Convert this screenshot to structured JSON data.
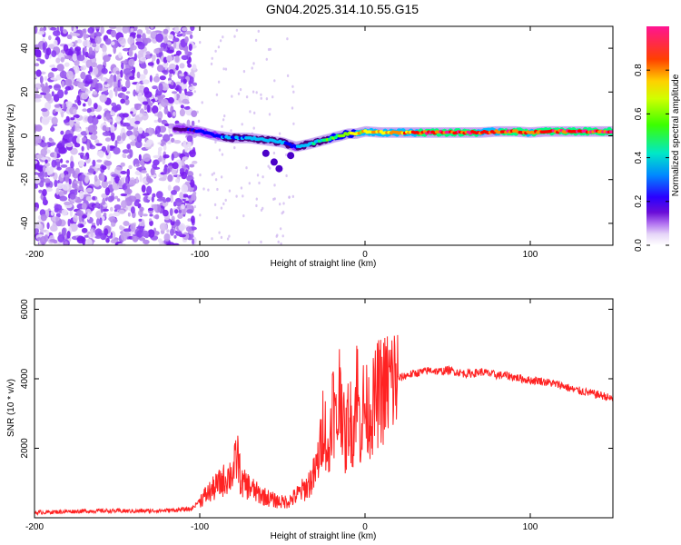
{
  "title": "GN04.2025.314.10.55.G15",
  "chart_data": [
    {
      "type": "heatmap",
      "xlabel": "Height of straight line (km)",
      "ylabel": "Frequency (Hz)",
      "xlim": [
        -200,
        150
      ],
      "ylim": [
        -50,
        50
      ],
      "xticks": [
        "-200",
        "-100",
        "0",
        "100"
      ],
      "yticks": [
        "40",
        "20",
        "0",
        "-20",
        "-40"
      ],
      "noise_region_km": [
        -200,
        -103
      ],
      "ridge": {
        "x": [
          -115,
          -110,
          -100,
          -90,
          -80,
          -70,
          -60,
          -50,
          -42,
          -35,
          -30,
          -25,
          -20,
          -15,
          -10,
          -5,
          0,
          10,
          20,
          30,
          40,
          60,
          70,
          80,
          90,
          100,
          110,
          130,
          150
        ],
        "y": [
          3,
          3,
          2,
          0,
          -1,
          -1,
          -2,
          -3,
          -5,
          -4,
          -3,
          -2,
          -1,
          0,
          1,
          1,
          2,
          1.5,
          1.5,
          1.5,
          1.5,
          1.5,
          1.5,
          2,
          2,
          1.5,
          2,
          2,
          2
        ],
        "amplitude": [
          0.25,
          0.3,
          0.35,
          0.4,
          0.45,
          0.45,
          0.5,
          0.45,
          0.4,
          0.5,
          0.5,
          0.55,
          0.6,
          0.65,
          0.7,
          0.75,
          0.8,
          0.8,
          0.85,
          0.9,
          0.95,
          0.95,
          0.9,
          0.9,
          0.95,
          0.9,
          0.95,
          0.95,
          0.95
        ]
      },
      "colorbar": {
        "label": "Normalized spectral amplitude",
        "range": [
          0,
          1
        ],
        "ticks": [
          "0.0",
          "0.2",
          "0.4",
          "0.6",
          "0.8"
        ],
        "colors": [
          "#ffffff",
          "#d9c2f2",
          "#9b30ff",
          "#4b0082",
          "#0000ff",
          "#00bfff",
          "#00ff7f",
          "#7fff00",
          "#ffff00",
          "#ff8c00",
          "#ff0000",
          "#ff1493"
        ]
      }
    },
    {
      "type": "line",
      "xlabel": "Height of straight line (km)",
      "ylabel": "SNR (10 * v/v)",
      "xlim": [
        -200,
        150
      ],
      "ylim": [
        0,
        6300
      ],
      "xticks": [
        "-200",
        "-100",
        "0",
        "100"
      ],
      "yticks": [
        "6000",
        "4000",
        "2000"
      ],
      "color": "#ff2222",
      "series": [
        {
          "name": "SNR",
          "x": [
            -200,
            -180,
            -160,
            -140,
            -120,
            -105,
            -100,
            -95,
            -90,
            -85,
            -80,
            -77,
            -75,
            -70,
            -65,
            -60,
            -55,
            -50,
            -45,
            -40,
            -35,
            -30,
            -27,
            -25,
            -22,
            -20,
            -17,
            -15,
            -12,
            -10,
            -7,
            -5,
            -3,
            -1,
            2,
            5,
            8,
            12,
            15,
            20,
            25,
            30,
            35,
            40,
            45,
            50,
            55,
            60,
            65,
            70,
            75,
            80,
            85,
            90,
            95,
            100,
            105,
            110,
            115,
            120,
            125,
            130,
            135,
            140,
            145,
            150
          ],
          "y": [
            150,
            180,
            200,
            190,
            210,
            250,
            500,
            700,
            900,
            1100,
            1300,
            1800,
            1000,
            900,
            700,
            600,
            500,
            450,
            500,
            700,
            900,
            1300,
            2000,
            3000,
            1500,
            3500,
            2500,
            4000,
            2000,
            3000,
            2500,
            4000,
            2500,
            3200,
            3000,
            3200,
            3600,
            3700,
            3900,
            4000,
            4100,
            4150,
            4200,
            4250,
            4200,
            4250,
            4200,
            4150,
            4150,
            4200,
            4150,
            4100,
            4100,
            4050,
            4000,
            3950,
            3950,
            3900,
            3850,
            3800,
            3700,
            3650,
            3600,
            3550,
            3500,
            3400
          ]
        }
      ]
    }
  ]
}
